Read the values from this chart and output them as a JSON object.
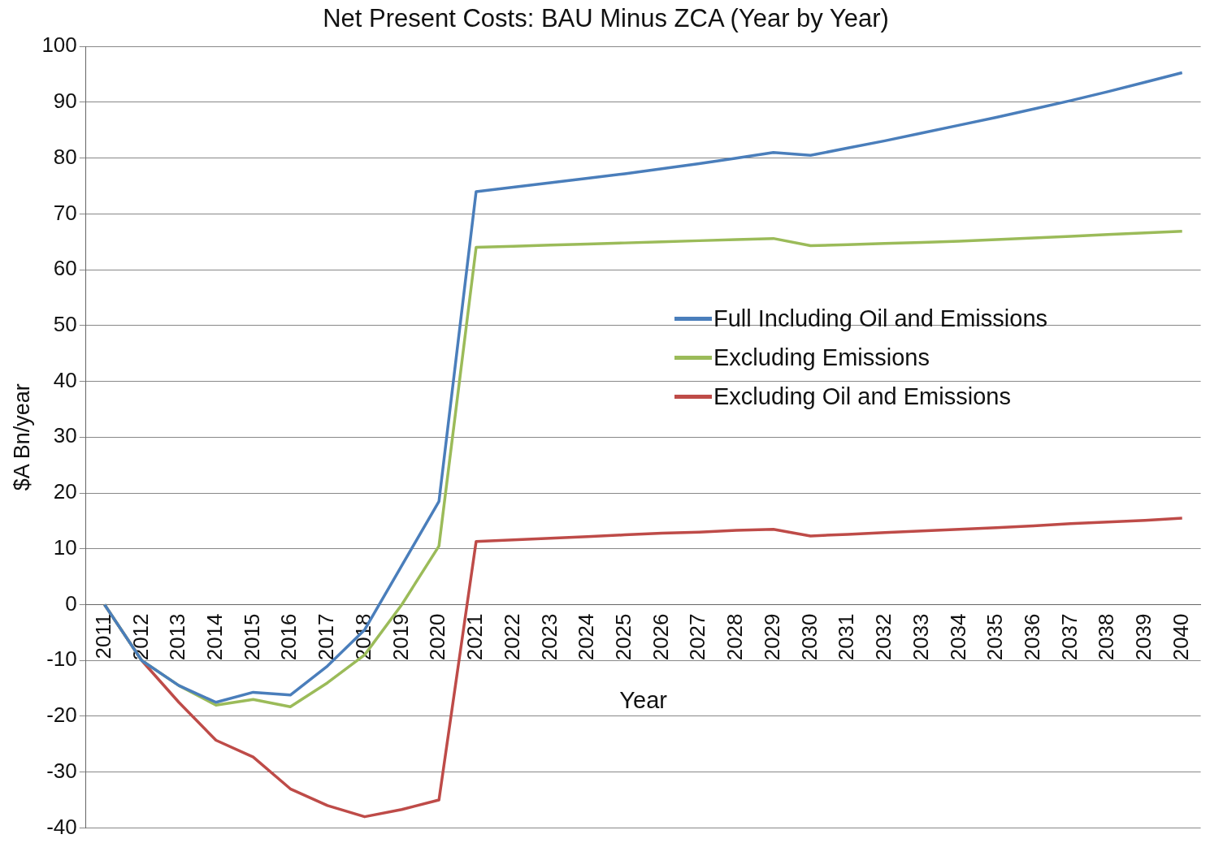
{
  "chart_data": {
    "type": "line",
    "title": "Net Present Costs: BAU Minus ZCA (Year by Year)",
    "xlabel": "Year",
    "ylabel": "$A Bn/year",
    "categories": [
      "2011",
      "2012",
      "2013",
      "2014",
      "2015",
      "2016",
      "2017",
      "2018",
      "2019",
      "2020",
      "2021",
      "2022",
      "2023",
      "2024",
      "2025",
      "2026",
      "2027",
      "2028",
      "2029",
      "2030",
      "2031",
      "2032",
      "2033",
      "2034",
      "2035",
      "2036",
      "2037",
      "2038",
      "2039",
      "2040"
    ],
    "series": [
      {
        "name": "Full Including Oil and Emissions",
        "color": "#4a7ebb",
        "values": [
          0,
          -10,
          -14.5,
          -17.5,
          -15.7,
          -16.2,
          -11,
          -4.5,
          7,
          18.5,
          74,
          74.8,
          75.6,
          76.4,
          77.2,
          78.1,
          79,
          80,
          81,
          80.5,
          81.8,
          83.1,
          84.5,
          85.9,
          87.3,
          88.8,
          90.3,
          91.9,
          93.6,
          95.3
        ]
      },
      {
        "name": "Excluding Emissions",
        "color": "#9bbb59",
        "values": [
          0,
          -10,
          -14.5,
          -18,
          -17,
          -18.3,
          -14,
          -9,
          0,
          10.5,
          64,
          64.2,
          64.4,
          64.6,
          64.8,
          65,
          65.2,
          65.4,
          65.6,
          64.3,
          64.5,
          64.7,
          64.9,
          65.1,
          65.4,
          65.7,
          66,
          66.3,
          66.6,
          66.9
        ]
      },
      {
        "name": "Excluding Oil and Emissions",
        "color": "#be4b48",
        "values": [
          0,
          -10,
          -17.5,
          -24.3,
          -27.3,
          -33,
          -36,
          -38,
          -36.7,
          -35,
          11.3,
          11.6,
          11.9,
          12.2,
          12.5,
          12.8,
          13,
          13.3,
          13.5,
          12.3,
          12.6,
          12.9,
          13.2,
          13.5,
          13.8,
          14.1,
          14.5,
          14.8,
          15.1,
          15.5
        ]
      }
    ],
    "ylim": [
      -40,
      100
    ],
    "yticks": [
      -40,
      -30,
      -20,
      -10,
      0,
      10,
      20,
      30,
      40,
      50,
      60,
      70,
      80,
      90,
      100
    ],
    "grid": "y",
    "legend": "right",
    "marker": "none",
    "line_style": "solid"
  }
}
